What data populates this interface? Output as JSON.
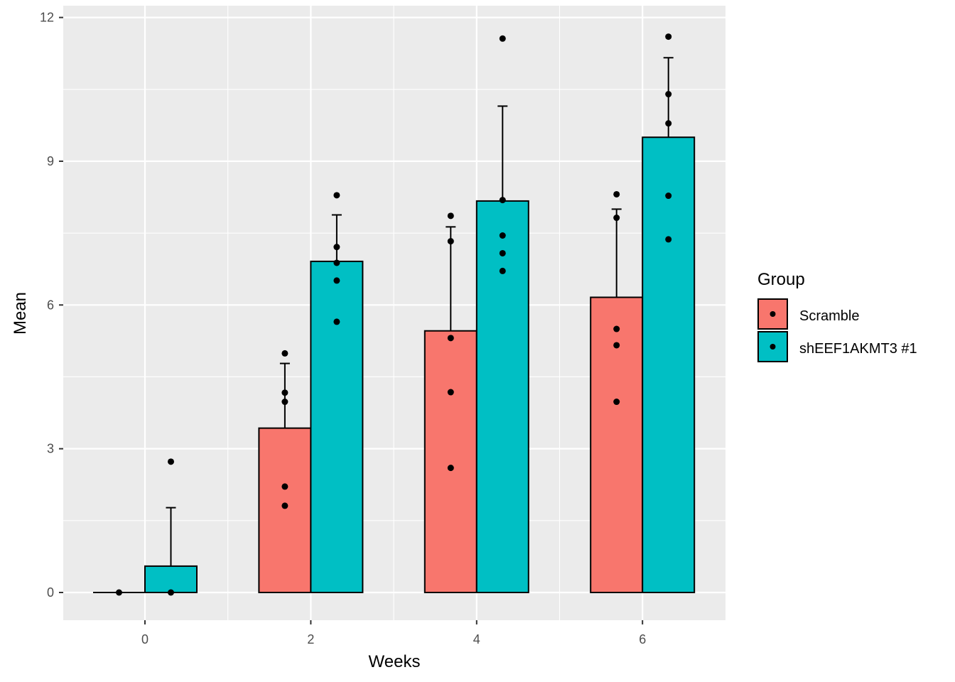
{
  "chart_data": {
    "type": "bar",
    "title": "",
    "xlabel": "Weeks",
    "ylabel": "Mean",
    "categories": [
      "0",
      "2",
      "4",
      "6"
    ],
    "x": [
      0,
      2,
      4,
      6
    ],
    "xlim": [
      -1.0,
      7.0
    ],
    "ylim": [
      -0.6,
      12.25
    ],
    "x_ticks": [
      0,
      2,
      4,
      6
    ],
    "x_tick_labels": [
      "0",
      "2",
      "4",
      "6"
    ],
    "y_ticks": [
      0,
      3,
      6,
      9,
      12
    ],
    "y_tick_labels": [
      "0",
      "3",
      "6",
      "9",
      "12"
    ],
    "grid": true,
    "legend": {
      "title": "Group",
      "position": "right"
    },
    "series": [
      {
        "name": "Scramble",
        "color": "#F8766D",
        "values": [
          0.0,
          3.43,
          5.46,
          6.16
        ],
        "error_upper": [
          0.0,
          4.78,
          7.63,
          8.0
        ],
        "points": [
          [
            0.0
          ],
          [
            4.99,
            4.17,
            3.98,
            2.21,
            1.81
          ],
          [
            7.86,
            7.33,
            5.31,
            4.18,
            2.6
          ],
          [
            8.31,
            7.82,
            5.5,
            5.16,
            3.98
          ]
        ]
      },
      {
        "name": "shEEF1AKMT3 #1",
        "color": "#00BFC4",
        "values": [
          0.55,
          6.91,
          8.17,
          9.5
        ],
        "error_upper": [
          1.77,
          7.88,
          10.15,
          11.16
        ],
        "points": [
          [
            2.73,
            0.0
          ],
          [
            8.29,
            7.21,
            6.88,
            6.51,
            5.65
          ],
          [
            11.56,
            8.19,
            7.45,
            7.08,
            6.71
          ],
          [
            11.6,
            10.4,
            9.79,
            8.28,
            7.37
          ]
        ]
      }
    ]
  },
  "colors": {
    "panel_background": "#EBEBEB",
    "grid": "#FFFFFF",
    "outline": "#000000"
  }
}
